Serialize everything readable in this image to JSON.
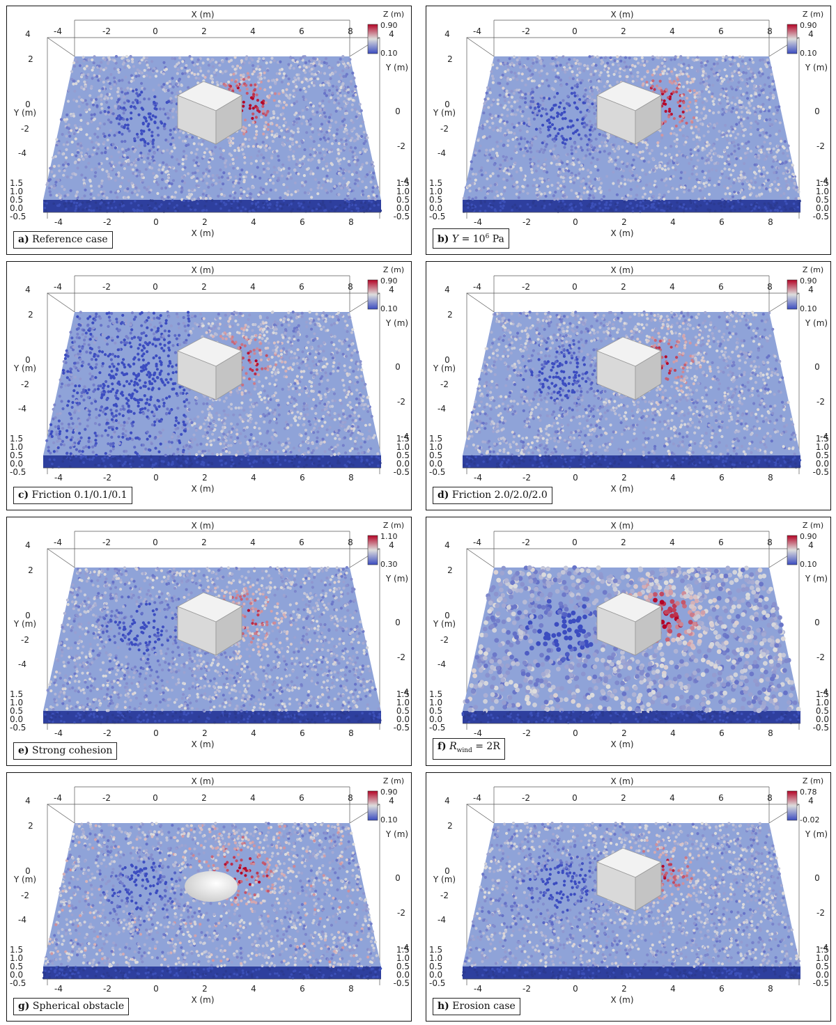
{
  "axes": {
    "x_label": "X (m)",
    "y_label": "Y (m)",
    "z_label": "Z (m)",
    "x_ticks_front": [
      "-4",
      "-2",
      "0",
      "2",
      "4",
      "6",
      "8"
    ],
    "x_ticks_back": [
      "-4",
      "-2",
      "0",
      "2",
      "4",
      "6",
      "8"
    ],
    "y_ticks": [
      "2",
      "0",
      "-2",
      "-4"
    ],
    "y_ticks_far": [
      "4",
      "2",
      "0",
      "-2",
      "-4"
    ],
    "z_ticks": [
      "1.5",
      "1.0",
      "0.5",
      "0.0",
      "-0.5"
    ],
    "y_ticks_top": [
      "4"
    ]
  },
  "colors": {
    "low": "#3b4cc0",
    "mid": "#dddddd",
    "high": "#b40426",
    "obstacle": "#e8e8e8"
  },
  "panels": [
    {
      "id": "a",
      "letter": "a)",
      "caption": "Reference case",
      "cb_max": "0.90",
      "cb_min": "0.10",
      "obstacle": "cube"
    },
    {
      "id": "b",
      "letter": "b)",
      "caption_math": "Y = 10^6 Pa",
      "caption_pre": "Y",
      "caption_mid": " = 10",
      "caption_sup": "6",
      "caption_post": " Pa",
      "cb_max": "0.90",
      "cb_min": "0.10",
      "obstacle": "cube"
    },
    {
      "id": "c",
      "letter": "c)",
      "caption": "Friction 0.1/0.1/0.1",
      "cb_max": "0.90",
      "cb_min": "0.10",
      "obstacle": "cube"
    },
    {
      "id": "d",
      "letter": "d)",
      "caption": "Friction 2.0/2.0/2.0",
      "cb_max": "0.90",
      "cb_min": "0.10",
      "obstacle": "cube"
    },
    {
      "id": "e",
      "letter": "e)",
      "caption": "Strong cohesion",
      "cb_max": "1.10",
      "cb_min": "0.30",
      "obstacle": "cube"
    },
    {
      "id": "f",
      "letter": "f)",
      "caption_pre": "R",
      "caption_sub": "wind",
      "caption_post": " = 2R",
      "cb_max": "0.90",
      "cb_min": "0.10",
      "obstacle": "cube"
    },
    {
      "id": "g",
      "letter": "g)",
      "caption": "Spherical obstacle",
      "cb_max": "0.90",
      "cb_min": "0.10",
      "obstacle": "sphere"
    },
    {
      "id": "h",
      "letter": "h)",
      "caption": "Erosion case",
      "cb_max": "0.78",
      "cb_min": "-0.02",
      "obstacle": "cube"
    }
  ]
}
